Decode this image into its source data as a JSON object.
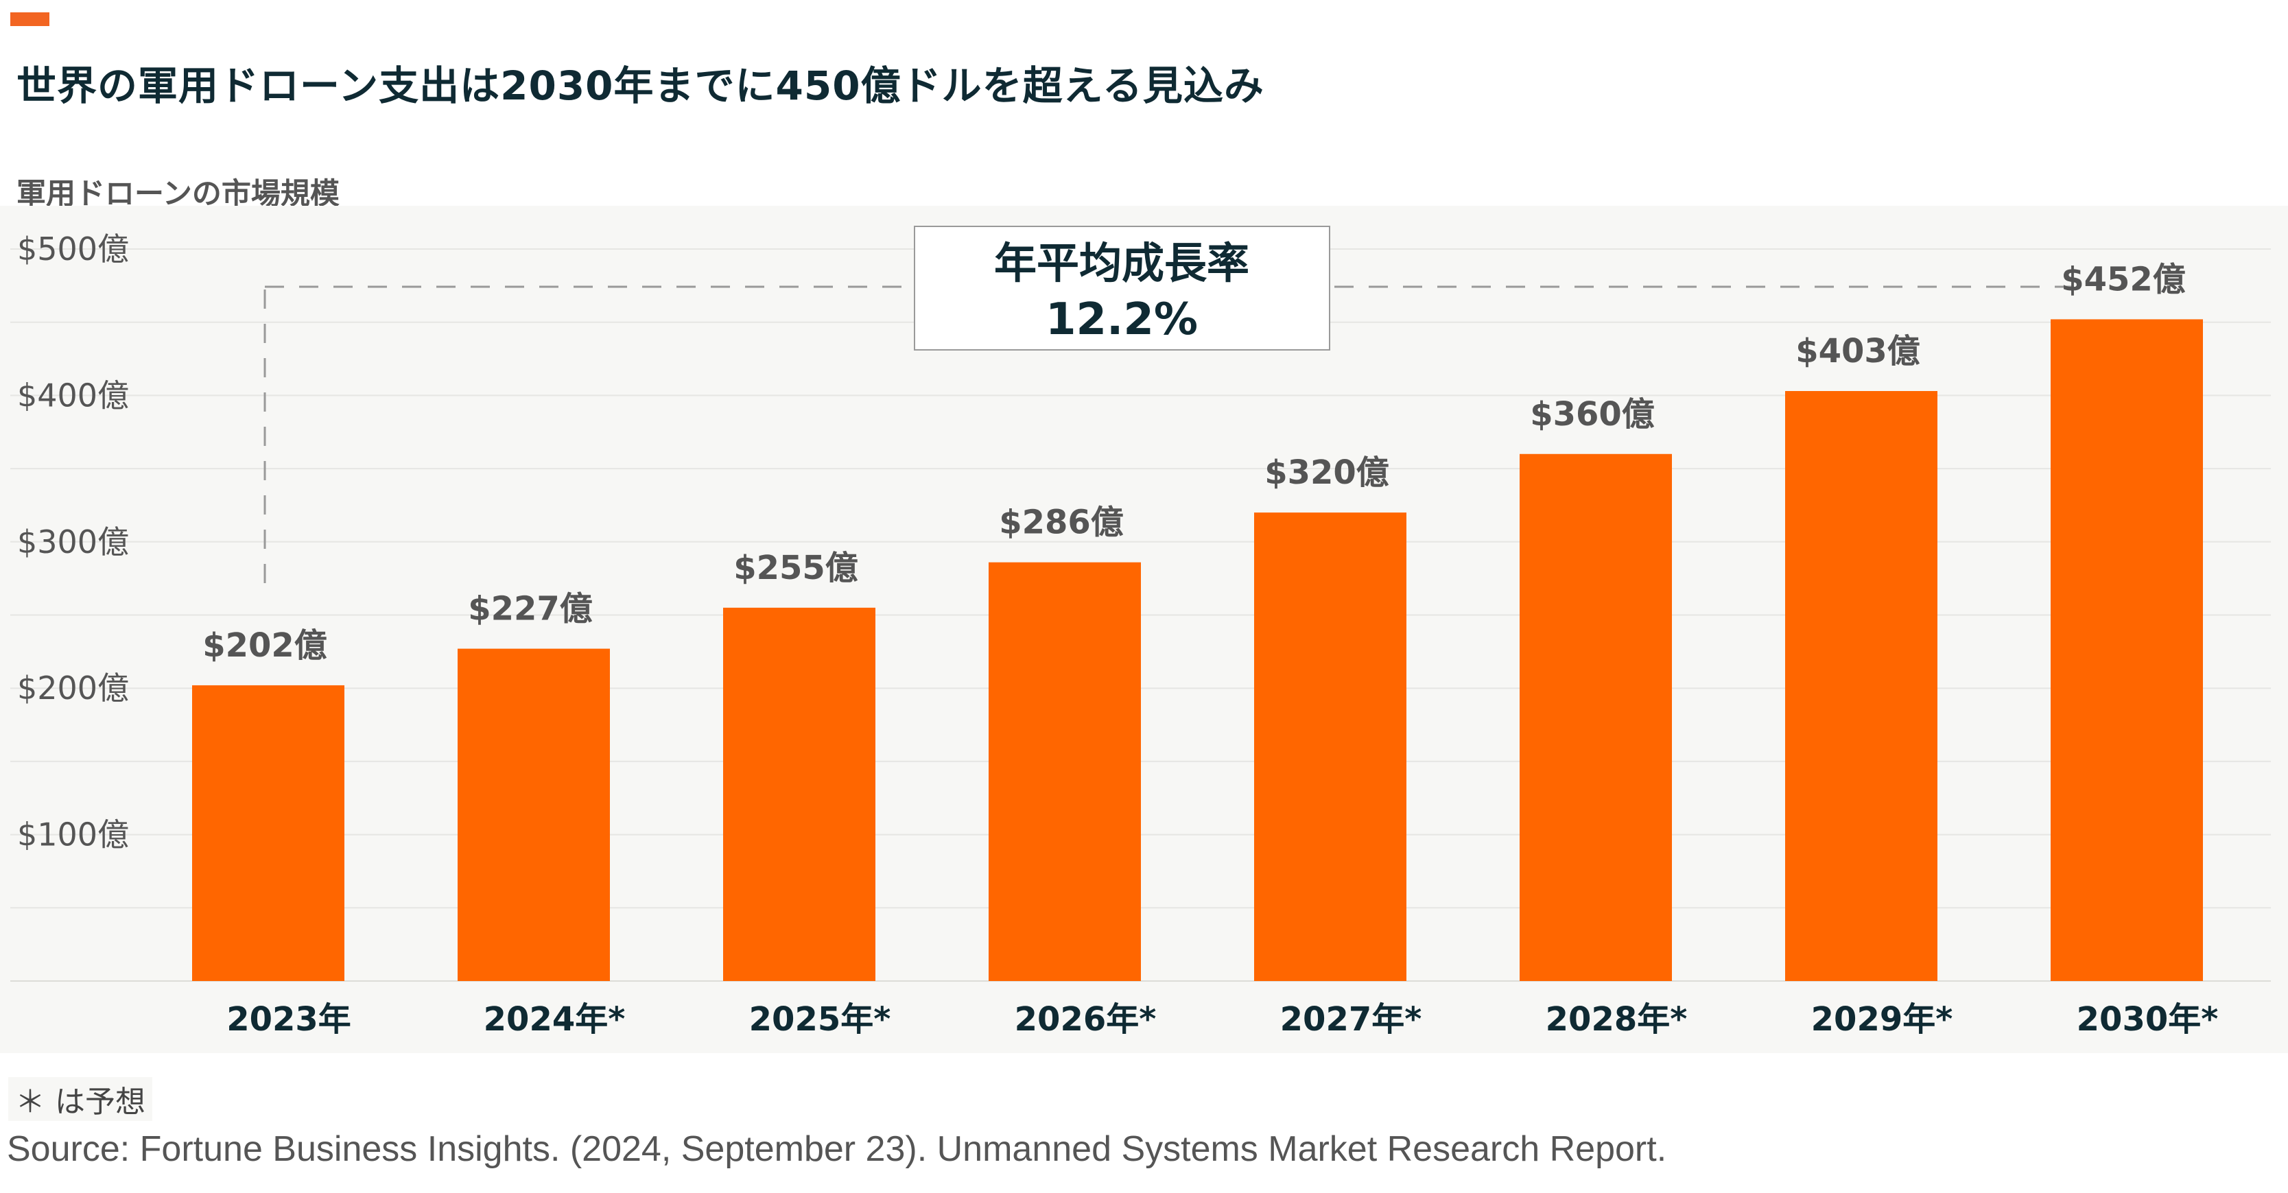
{
  "title": "世界の軍用ドローン支出は2030年までに450億ドルを超える見込み",
  "colors": {
    "accent": "#f26522",
    "bar": "#ff6600",
    "title": "#0f2a33",
    "label": "#555555"
  },
  "chart_data": {
    "type": "bar",
    "title": "世界の軍用ドローン支出は2030年までに450億ドルを超える見込み",
    "ylabel": "軍用ドローンの市場規模",
    "xlabel": "",
    "categories": [
      "2023年",
      "2024年*",
      "2025年*",
      "2026年*",
      "2027年*",
      "2028年*",
      "2029年*",
      "2030年*"
    ],
    "values": [
      202,
      227,
      255,
      286,
      320,
      360,
      403,
      452
    ],
    "value_labels": [
      "$202億",
      "$227億",
      "$255億",
      "$286億",
      "$320億",
      "$360億",
      "$403億",
      "$452億"
    ],
    "y_ticks": [
      100,
      200,
      300,
      400,
      500
    ],
    "y_tick_labels": [
      "$100億",
      "$200億",
      "$300億",
      "$400億",
      "$500億"
    ],
    "ylim": [
      0,
      500
    ],
    "grid": true,
    "annotation": {
      "line1": "年平均成長率",
      "line2": "12.2%"
    }
  },
  "footnote": "＊ は予想",
  "source": "Source: Fortune Business Insights. (2024, September 23). Unmanned Systems Market Research Report."
}
